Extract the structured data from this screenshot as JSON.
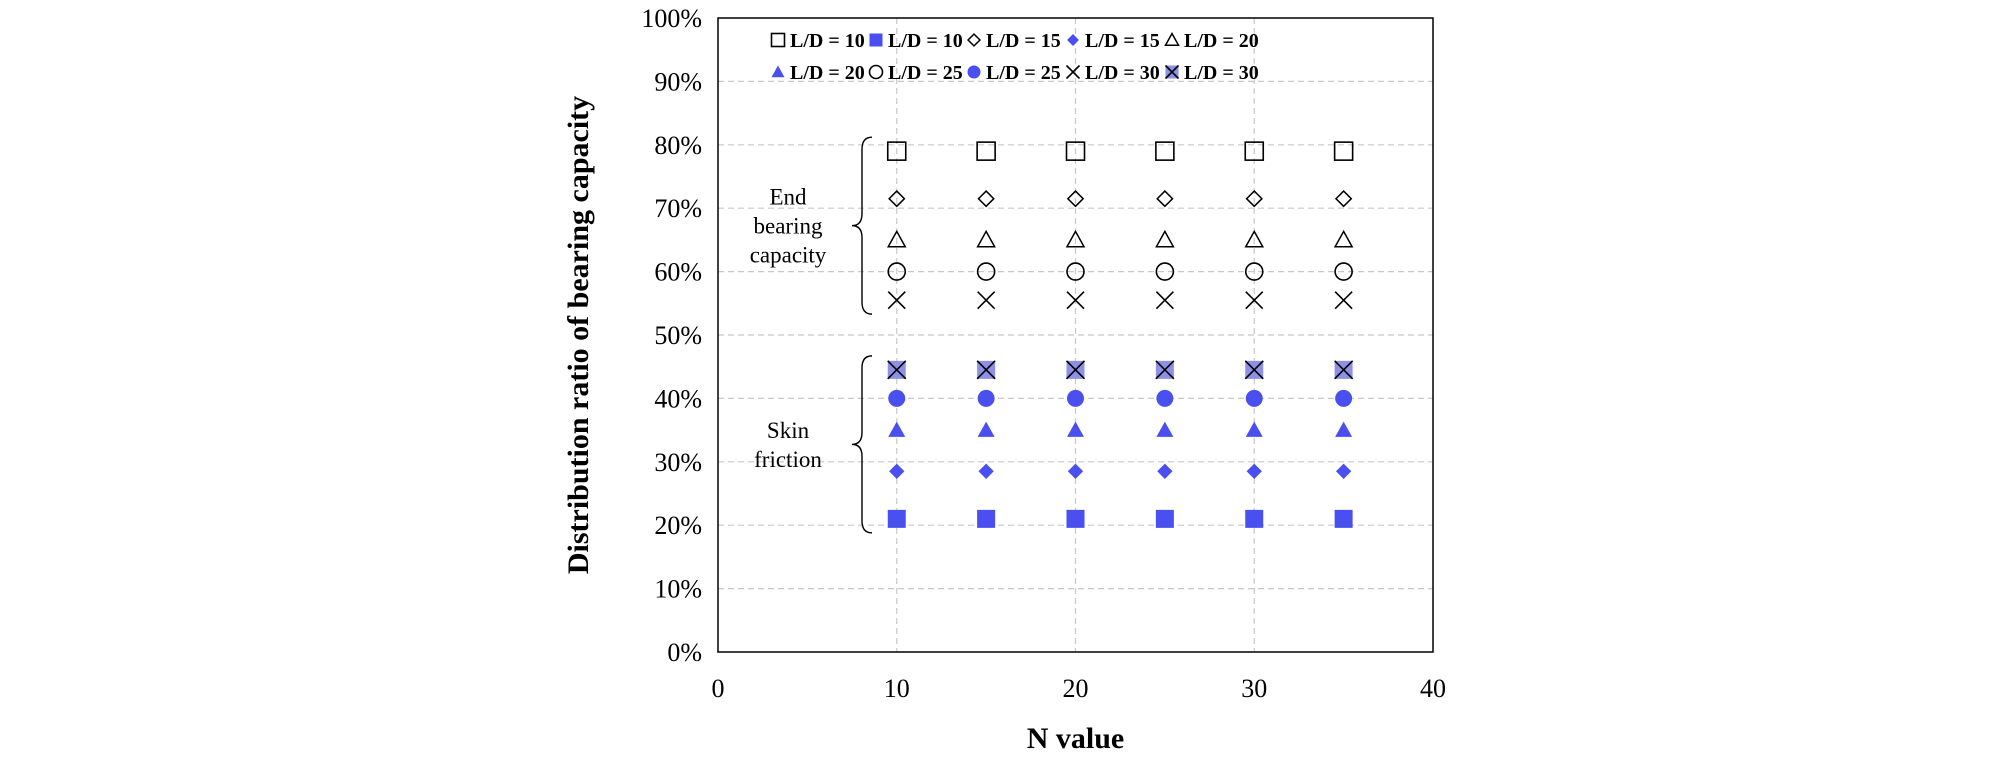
{
  "chart_data": {
    "type": "scatter",
    "title": "",
    "xlabel": "N value",
    "ylabel": "Distribution ratio of bearing capacity",
    "xlim": [
      0,
      40
    ],
    "ylim": [
      0,
      100
    ],
    "xticks": [
      "0",
      "10",
      "20",
      "30",
      "40"
    ],
    "yticks": [
      "0%",
      "10%",
      "20%",
      "30%",
      "40%",
      "50%",
      "60%",
      "70%",
      "80%",
      "90%",
      "100%"
    ],
    "grid": true,
    "legend_position": "top",
    "x": [
      10,
      15,
      20,
      25,
      30,
      35
    ],
    "series": [
      {
        "name": "L/D = 10",
        "marker": "square-open",
        "color": "#000000",
        "values": [
          79,
          79,
          79,
          79,
          79,
          79
        ]
      },
      {
        "name": "L/D = 10",
        "marker": "square-filled",
        "color": "#4a4ff0",
        "values": [
          21,
          21,
          21,
          21,
          21,
          21
        ]
      },
      {
        "name": "L/D = 15",
        "marker": "diamond-open",
        "color": "#000000",
        "values": [
          71.5,
          71.5,
          71.5,
          71.5,
          71.5,
          71.5
        ]
      },
      {
        "name": "L/D = 15",
        "marker": "diamond-filled",
        "color": "#4a4ff0",
        "values": [
          28.5,
          28.5,
          28.5,
          28.5,
          28.5,
          28.5
        ]
      },
      {
        "name": "L/D = 20",
        "marker": "triangle-open",
        "color": "#000000",
        "values": [
          65,
          65,
          65,
          65,
          65,
          65
        ]
      },
      {
        "name": "L/D = 20",
        "marker": "triangle-filled",
        "color": "#4a4ff0",
        "values": [
          35,
          35,
          35,
          35,
          35,
          35
        ]
      },
      {
        "name": "L/D = 25",
        "marker": "circle-open",
        "color": "#000000",
        "values": [
          60,
          60,
          60,
          60,
          60,
          60
        ]
      },
      {
        "name": "L/D = 25",
        "marker": "circle-filled",
        "color": "#4a4ff0",
        "values": [
          40,
          40,
          40,
          40,
          40,
          40
        ]
      },
      {
        "name": "L/D = 30",
        "marker": "x",
        "color": "#000000",
        "values": [
          55.5,
          55.5,
          55.5,
          55.5,
          55.5,
          55.5
        ]
      },
      {
        "name": "L/D = 30",
        "marker": "x-box",
        "color": "#8e90e6",
        "values": [
          44.5,
          44.5,
          44.5,
          44.5,
          44.5,
          44.5
        ]
      }
    ],
    "annotations": [
      {
        "lines": [
          "End",
          "bearing",
          "capacity"
        ],
        "y_range": [
          55.5,
          79
        ]
      },
      {
        "lines": [
          "Skin",
          "friction"
        ],
        "y_range": [
          21,
          44.5
        ]
      }
    ]
  }
}
